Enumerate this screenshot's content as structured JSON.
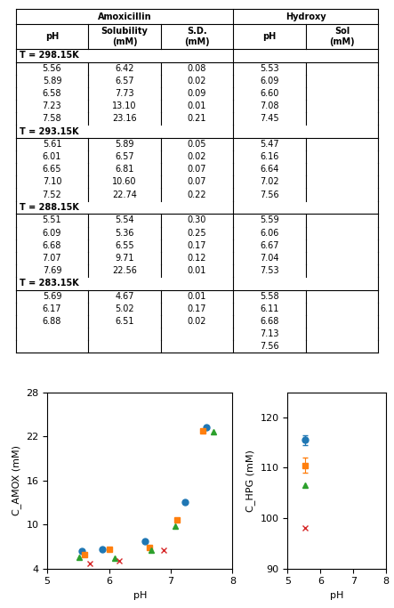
{
  "chart_data": [
    {
      "type": "table",
      "column_groups": [
        {
          "name": "Amoxicillin",
          "columns": [
            "pH",
            "Solubility\n(mM)",
            "S.D.\n(mM)"
          ]
        },
        {
          "name": "Hydroxy",
          "columns": [
            "pH",
            "Sol\n(mM)"
          ]
        }
      ],
      "sections": [
        {
          "label": "T = 298.15K",
          "rows": [
            [
              "5.56",
              "6.42",
              "0.08",
              "5.53",
              null
            ],
            [
              "5.89",
              "6.57",
              "0.02",
              "6.09",
              null
            ],
            [
              "6.58",
              "7.73",
              "0.09",
              "6.60",
              null
            ],
            [
              "7.23",
              "13.10",
              "0.01",
              "7.08",
              null
            ],
            [
              "7.58",
              "23.16",
              "0.21",
              "7.45",
              null
            ]
          ]
        },
        {
          "label": "T = 293.15K",
          "rows": [
            [
              "5.61",
              "5.89",
              "0.05",
              "5.47",
              null
            ],
            [
              "6.01",
              "6.57",
              "0.02",
              "6.16",
              null
            ],
            [
              "6.65",
              "6.81",
              "0.07",
              "6.64",
              null
            ],
            [
              "7.10",
              "10.60",
              "0.07",
              "7.02",
              null
            ],
            [
              "7.52",
              "22.74",
              "0.22",
              "7.56",
              null
            ]
          ]
        },
        {
          "label": "T = 288.15K",
          "rows": [
            [
              "5.51",
              "5.54",
              "0.30",
              "5.59",
              null
            ],
            [
              "6.09",
              "5.36",
              "0.25",
              "6.06",
              null
            ],
            [
              "6.68",
              "6.55",
              "0.17",
              "6.67",
              null
            ],
            [
              "7.07",
              "9.71",
              "0.12",
              "7.04",
              null
            ],
            [
              "7.69",
              "22.56",
              "0.01",
              "7.53",
              null
            ]
          ]
        },
        {
          "label": "T = 283.15K",
          "rows": [
            [
              "5.69",
              "4.67",
              "0.01",
              "5.58",
              null
            ],
            [
              "6.17",
              "5.02",
              "0.17",
              "6.11",
              null
            ],
            [
              "6.88",
              "6.51",
              "0.02",
              "6.68",
              null
            ],
            [
              null,
              null,
              null,
              "7.13",
              null
            ],
            [
              null,
              null,
              null,
              "7.56",
              null
            ]
          ]
        }
      ]
    },
    {
      "type": "scatter",
      "xlabel": "pH",
      "ylabel": "C_AMOX (mM)",
      "xlim": [
        5,
        8
      ],
      "ylim": [
        4,
        28
      ],
      "xticks": [
        5,
        6,
        7,
        8
      ],
      "yticks": [
        4,
        10,
        16,
        22,
        28
      ],
      "series": [
        {
          "marker": "circle",
          "x": [
            5.56,
            5.89,
            6.58,
            7.23,
            7.58
          ],
          "values": [
            6.42,
            6.57,
            7.73,
            13.1,
            23.16
          ]
        },
        {
          "marker": "square",
          "x": [
            5.61,
            6.01,
            6.65,
            7.1,
            7.52
          ],
          "values": [
            5.89,
            6.57,
            6.81,
            10.6,
            22.74
          ]
        },
        {
          "marker": "triangle",
          "x": [
            5.51,
            6.09,
            6.68,
            7.07,
            7.69
          ],
          "values": [
            5.54,
            5.36,
            6.55,
            9.71,
            22.56
          ]
        },
        {
          "marker": "x",
          "x": [
            5.69,
            6.17,
            6.88
          ],
          "values": [
            4.67,
            5.02,
            6.51
          ]
        }
      ]
    },
    {
      "type": "scatter",
      "xlabel": "pH",
      "ylabel": "C_HPG (mM)",
      "xlim": [
        5,
        8
      ],
      "ylim": [
        90,
        125
      ],
      "xticks": [
        5,
        6,
        7,
        8
      ],
      "yticks": [
        90,
        100,
        110,
        120
      ],
      "series": [
        {
          "marker": "circle",
          "x": [
            5.53
          ],
          "values": [
            115.5
          ],
          "errors": [
            1.0
          ]
        },
        {
          "marker": "square",
          "x": [
            5.53
          ],
          "values": [
            110.5
          ],
          "errors": [
            1.5
          ]
        },
        {
          "marker": "triangle",
          "x": [
            5.53
          ],
          "values": [
            106.5
          ]
        },
        {
          "marker": "x",
          "x": [
            5.53
          ],
          "values": [
            98.0
          ]
        }
      ]
    }
  ]
}
